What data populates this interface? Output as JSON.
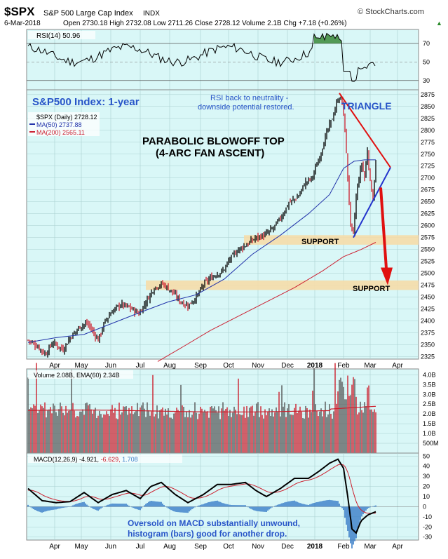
{
  "header": {
    "symbol": "$SPX",
    "name": "S&P 500 Large Cap Index",
    "exchange": "INDX",
    "credit": "© StockCharts.com",
    "date": "6-Mar-2018",
    "stats": "Open 2730.18  High 2732.08  Low 2711.26  Close 2728.12  Volume 2.1B  Chg +7.18 (+0.26%)",
    "chg_arrow": "▲"
  },
  "colors": {
    "panel_bg": "#d9f7f7",
    "grid": "#a9cfcf",
    "up": "#000000",
    "down": "#cc1f2d",
    "ma50": "#2233aa",
    "ma200": "#cc2233",
    "support_band": "#f5dba8",
    "annot_blue": "#2855c8",
    "macd_hist": "#3a7fc8",
    "rsi_fill": "#3a8a3a",
    "triangle_red": "#e01010",
    "triangle_blue": "#2233cc"
  },
  "rsi_panel": {
    "legend": "RSI(14) 50.96",
    "levels": [
      "70",
      "50",
      "30"
    ]
  },
  "price_panel": {
    "legend_price": "$SPX (Daily) 2728.12",
    "legend_ma50": "MA(50) 2737.88",
    "legend_ma200": "MA(200) 2565.11",
    "y_ticks": [
      "2875",
      "2850",
      "2825",
      "2800",
      "2775",
      "2750",
      "2725",
      "2700",
      "2675",
      "2650",
      "2625",
      "2600",
      "2575",
      "2550",
      "2525",
      "2500",
      "2475",
      "2450",
      "2425",
      "2400",
      "2375",
      "2350",
      "2325"
    ],
    "annotation_title": "S&P500 Index: 1-year",
    "annotation_rsi_1": "RSI back to neutrality -",
    "annotation_rsi_2": "downside potential restored.",
    "annotation_triangle": "TRIANGLE",
    "annotation_parabolic_1": "PARABOLIC BLOWOFF TOP",
    "annotation_parabolic_2": "(4-ARC FAN ASCENT)",
    "support_upper": "SUPPORT",
    "support_lower": "SUPPORT"
  },
  "volume_panel": {
    "legend": "Volume 2.08B, EMA(60) 2.34B",
    "y_ticks": [
      "4.0B",
      "3.5B",
      "3.0B",
      "2.5B",
      "2.0B",
      "1.5B",
      "1.0B",
      "500M"
    ]
  },
  "macd_panel": {
    "legend_macd": "MACD(12,26,9) -4.921,",
    "legend_signal": "-6.629,",
    "legend_hist": "1.708",
    "y_ticks": [
      "50",
      "40",
      "30",
      "20",
      "10",
      "0",
      "-10",
      "-20",
      "-30"
    ],
    "annotation_1": "Oversold on MACD substantially unwound,",
    "annotation_2": "histogram (bars) good for another drop."
  },
  "x_axis": {
    "labels": [
      "Apr",
      "May",
      "Jun",
      "Jul",
      "Aug",
      "Sep",
      "Oct",
      "Nov",
      "Dec",
      "2018",
      "Feb",
      "Mar",
      "Apr"
    ]
  },
  "chart_data": {
    "type": "line",
    "title": "",
    "x_labels": [
      "Apr",
      "May",
      "Jun",
      "Jul",
      "Aug",
      "Sep",
      "Oct",
      "Nov",
      "Dec",
      "2018",
      "Feb",
      "Mar",
      "Apr"
    ],
    "ylim_price": [
      2320,
      2885
    ],
    "series": [
      {
        "name": "$SPX (Daily)",
        "x": [
          "Apr",
          "May",
          "Jun",
          "Jul",
          "Aug",
          "Sep",
          "Oct",
          "Nov",
          "Dec",
          "2018",
          "Feb",
          "Mar"
        ],
        "values": [
          2360,
          2390,
          2435,
          2430,
          2475,
          2455,
          2520,
          2580,
          2645,
          2690,
          2775,
          2728
        ]
      },
      {
        "name": "MA(50)",
        "x": [
          "Apr",
          "May",
          "Jun",
          "Jul",
          "Aug",
          "Sep",
          "Oct",
          "Nov",
          "Dec",
          "2018",
          "Feb",
          "Mar"
        ],
        "values": [
          2355,
          2370,
          2400,
          2420,
          2445,
          2460,
          2490,
          2545,
          2585,
          2640,
          2735,
          2738
        ]
      },
      {
        "name": "MA(200)",
        "x": [
          "Jul",
          "Aug",
          "Sep",
          "Oct",
          "Nov",
          "Dec",
          "2018",
          "Feb",
          "Mar"
        ],
        "values": [
          2315,
          2360,
          2390,
          2420,
          2450,
          2480,
          2510,
          2545,
          2565
        ]
      }
    ],
    "support_zones": [
      [
        2560,
        2580
      ],
      [
        2465,
        2485
      ]
    ],
    "rsi_last": 50.96,
    "volume_last_billion": 2.08,
    "volume_ema60_billion": 2.34,
    "macd": {
      "macd": -4.921,
      "signal": -6.629,
      "histogram": 1.708,
      "ylim": [
        -30,
        50
      ]
    }
  }
}
